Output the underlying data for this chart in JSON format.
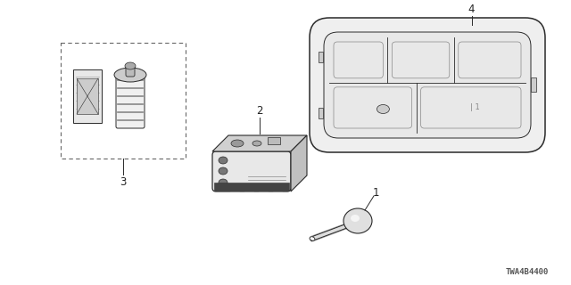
{
  "background_color": "#ffffff",
  "part_number": "TWA4B4400",
  "line_color": "#2a2a2a",
  "dashed_box_color": "#666666",
  "part_number_fontsize": 6.5,
  "label_fontsize": 8.5,
  "label_color": "#222222"
}
